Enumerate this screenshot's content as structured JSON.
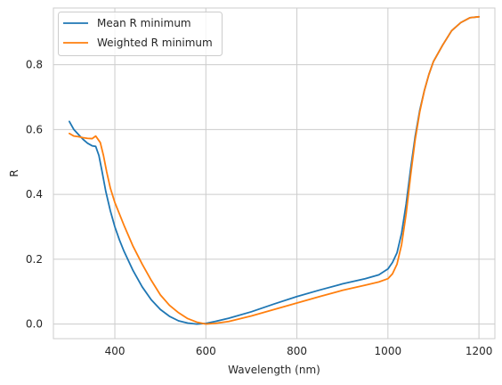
{
  "chart_data": {
    "type": "line",
    "title": "",
    "xlabel": "Wavelength (nm)",
    "ylabel": "R",
    "xlim": [
      265,
      1235
    ],
    "ylim": [
      -0.045,
      0.975
    ],
    "x_ticks": [
      400,
      600,
      800,
      1000,
      1200
    ],
    "y_ticks": [
      0.0,
      0.2,
      0.4,
      0.6,
      0.8
    ],
    "x_tick_labels": [
      "400",
      "600",
      "800",
      "1000",
      "1200"
    ],
    "y_tick_labels": [
      "0.0",
      "0.2",
      "0.4",
      "0.6",
      "0.8"
    ],
    "grid": true,
    "legend_position": "top-left",
    "series": [
      {
        "name": "Mean R minimum",
        "color": "#1f77b4",
        "points": [
          [
            300,
            0.625
          ],
          [
            310,
            0.6
          ],
          [
            320,
            0.585
          ],
          [
            330,
            0.57
          ],
          [
            340,
            0.558
          ],
          [
            350,
            0.55
          ],
          [
            358,
            0.548
          ],
          [
            365,
            0.52
          ],
          [
            372,
            0.47
          ],
          [
            380,
            0.41
          ],
          [
            390,
            0.35
          ],
          [
            400,
            0.3
          ],
          [
            410,
            0.26
          ],
          [
            420,
            0.225
          ],
          [
            440,
            0.165
          ],
          [
            460,
            0.115
          ],
          [
            480,
            0.075
          ],
          [
            500,
            0.045
          ],
          [
            520,
            0.024
          ],
          [
            540,
            0.01
          ],
          [
            560,
            0.003
          ],
          [
            580,
            0.0
          ],
          [
            600,
            0.002
          ],
          [
            620,
            0.008
          ],
          [
            650,
            0.018
          ],
          [
            700,
            0.038
          ],
          [
            750,
            0.062
          ],
          [
            800,
            0.085
          ],
          [
            850,
            0.105
          ],
          [
            900,
            0.124
          ],
          [
            950,
            0.14
          ],
          [
            980,
            0.152
          ],
          [
            1000,
            0.17
          ],
          [
            1010,
            0.19
          ],
          [
            1020,
            0.22
          ],
          [
            1030,
            0.28
          ],
          [
            1040,
            0.37
          ],
          [
            1050,
            0.48
          ],
          [
            1060,
            0.58
          ],
          [
            1070,
            0.66
          ],
          [
            1080,
            0.72
          ],
          [
            1090,
            0.77
          ],
          [
            1100,
            0.81
          ],
          [
            1120,
            0.86
          ],
          [
            1140,
            0.905
          ],
          [
            1160,
            0.93
          ],
          [
            1180,
            0.945
          ],
          [
            1200,
            0.948
          ]
        ]
      },
      {
        "name": "Weighted R minimum",
        "color": "#ff7f0e",
        "points": [
          [
            300,
            0.588
          ],
          [
            310,
            0.58
          ],
          [
            320,
            0.578
          ],
          [
            330,
            0.575
          ],
          [
            340,
            0.573
          ],
          [
            350,
            0.572
          ],
          [
            358,
            0.58
          ],
          [
            363,
            0.57
          ],
          [
            368,
            0.56
          ],
          [
            375,
            0.52
          ],
          [
            382,
            0.47
          ],
          [
            390,
            0.42
          ],
          [
            400,
            0.375
          ],
          [
            410,
            0.34
          ],
          [
            420,
            0.305
          ],
          [
            440,
            0.24
          ],
          [
            460,
            0.185
          ],
          [
            480,
            0.135
          ],
          [
            500,
            0.09
          ],
          [
            520,
            0.058
          ],
          [
            540,
            0.035
          ],
          [
            560,
            0.017
          ],
          [
            580,
            0.006
          ],
          [
            600,
            0.0
          ],
          [
            620,
            0.002
          ],
          [
            650,
            0.008
          ],
          [
            700,
            0.025
          ],
          [
            750,
            0.045
          ],
          [
            800,
            0.065
          ],
          [
            850,
            0.085
          ],
          [
            900,
            0.104
          ],
          [
            950,
            0.12
          ],
          [
            980,
            0.13
          ],
          [
            1000,
            0.14
          ],
          [
            1010,
            0.155
          ],
          [
            1020,
            0.185
          ],
          [
            1030,
            0.245
          ],
          [
            1040,
            0.34
          ],
          [
            1050,
            0.46
          ],
          [
            1060,
            0.57
          ],
          [
            1070,
            0.655
          ],
          [
            1080,
            0.72
          ],
          [
            1090,
            0.77
          ],
          [
            1100,
            0.81
          ],
          [
            1120,
            0.86
          ],
          [
            1140,
            0.905
          ],
          [
            1160,
            0.93
          ],
          [
            1180,
            0.945
          ],
          [
            1200,
            0.948
          ]
        ]
      }
    ]
  }
}
